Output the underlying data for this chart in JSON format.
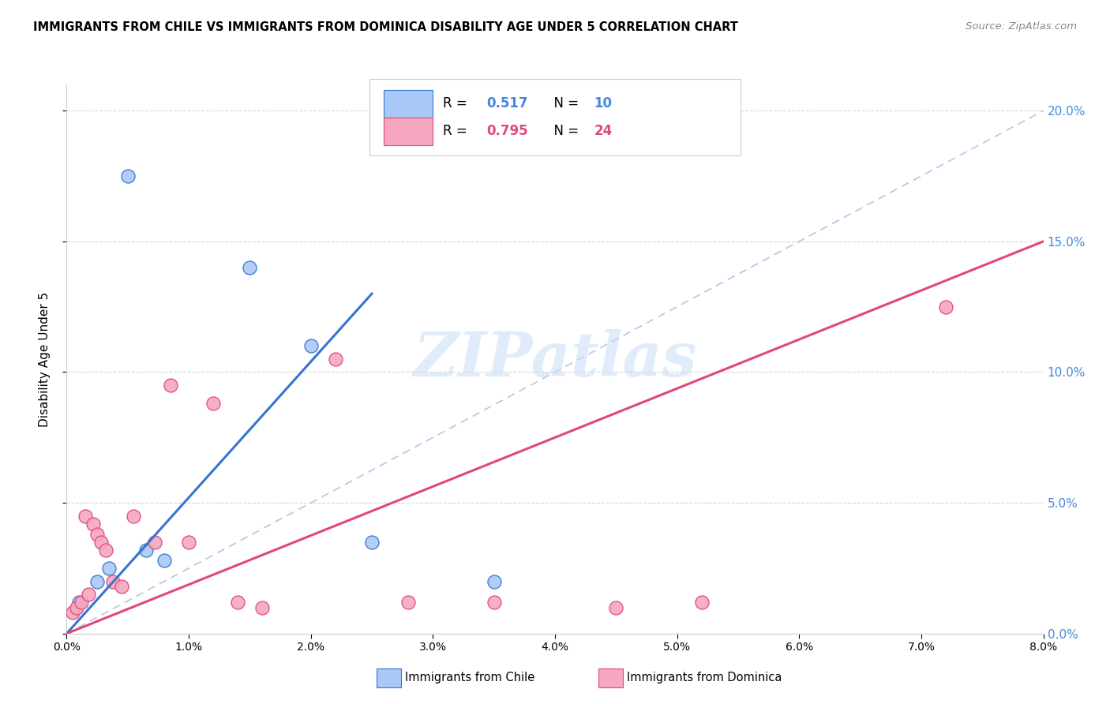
{
  "title": "IMMIGRANTS FROM CHILE VS IMMIGRANTS FROM DOMINICA DISABILITY AGE UNDER 5 CORRELATION CHART",
  "source": "Source: ZipAtlas.com",
  "ylabel": "Disability Age Under 5",
  "xlim": [
    0.0,
    8.0
  ],
  "ylim": [
    0.0,
    21.0
  ],
  "yticks": [
    0.0,
    5.0,
    10.0,
    15.0,
    20.0
  ],
  "xticks": [
    0.0,
    1.0,
    2.0,
    3.0,
    4.0,
    5.0,
    6.0,
    7.0,
    8.0
  ],
  "legend_chile_R": "0.517",
  "legend_chile_N": "10",
  "legend_dominica_R": "0.795",
  "legend_dominica_N": "24",
  "chile_color": "#aac8f5",
  "dominica_color": "#f5a8c0",
  "chile_line_color": "#3375d0",
  "dominica_line_color": "#e04878",
  "watermark": "ZIPatlas",
  "chile_points_x": [
    0.1,
    0.25,
    0.35,
    0.5,
    0.65,
    0.8,
    1.5,
    2.0,
    2.5,
    3.5
  ],
  "chile_points_y": [
    1.2,
    2.0,
    2.5,
    17.5,
    3.2,
    2.8,
    14.0,
    11.0,
    3.5,
    2.0
  ],
  "dominica_points_x": [
    0.05,
    0.08,
    0.12,
    0.15,
    0.18,
    0.22,
    0.25,
    0.28,
    0.32,
    0.38,
    0.45,
    0.55,
    0.72,
    0.85,
    1.0,
    1.2,
    1.4,
    1.6,
    2.2,
    2.8,
    3.5,
    4.5,
    5.2,
    7.2
  ],
  "dominica_points_y": [
    0.8,
    1.0,
    1.2,
    4.5,
    1.5,
    4.2,
    3.8,
    3.5,
    3.2,
    2.0,
    1.8,
    4.5,
    3.5,
    9.5,
    3.5,
    8.8,
    1.2,
    1.0,
    10.5,
    1.2,
    1.2,
    1.0,
    1.2,
    12.5
  ],
  "background_color": "#ffffff",
  "grid_color": "#d8d8d8",
  "diag_line_color": "#a0b8e0",
  "diag_line_x": [
    0.0,
    8.0
  ],
  "diag_line_y_scale": 2.5
}
